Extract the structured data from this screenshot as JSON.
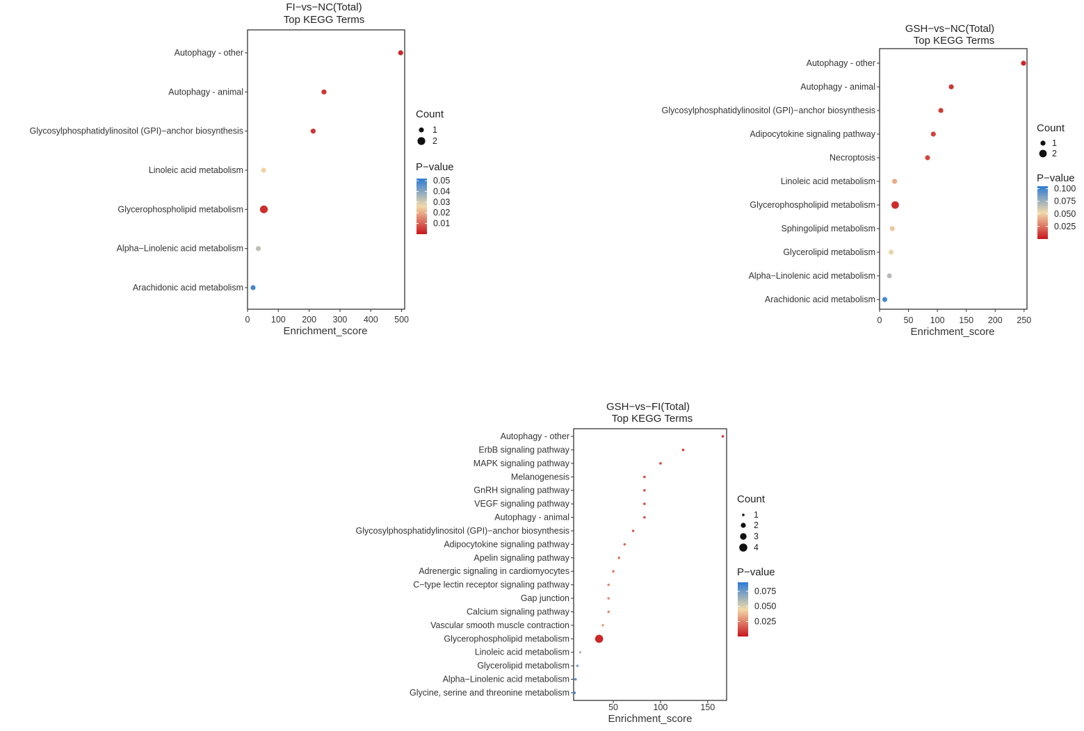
{
  "chart_data": [
    {
      "type": "scatter",
      "title": "FI−vs−NC(Total)",
      "subtitle": "Top KEGG Terms",
      "xlabel": "Enrichment_score",
      "ylabel": "",
      "xlim": [
        0,
        510
      ],
      "xticks": [
        0,
        100,
        200,
        300,
        400,
        500
      ],
      "terms": [
        "Autophagy - other",
        "Autophagy - animal",
        "Glycosylphosphatidylinositol (GPI)−anchor biosynthesis",
        "Linoleic acid metabolism",
        "Glycerophospholipid metabolism",
        "Alpha−Linolenic acid metabolism",
        "Arachidonic acid metabolism"
      ],
      "enrichment_score": [
        497,
        248,
        213,
        52,
        53,
        35,
        18
      ],
      "count": [
        1,
        1,
        1,
        1,
        2,
        1,
        1
      ],
      "pvalue": [
        0.002,
        0.004,
        0.004,
        0.025,
        0.003,
        0.033,
        0.049
      ],
      "legend": {
        "count_title": "Count",
        "count_levels": [
          1,
          2
        ],
        "pvalue_title": "P−value",
        "pvalue_range": [
          0.0,
          0.052
        ],
        "pvalue_ticks": [
          "0.05",
          "0.04",
          "0.03",
          "0.02",
          "0.01"
        ],
        "pvalue_tick_values": [
          0.05,
          0.04,
          0.03,
          0.02,
          0.01
        ]
      }
    },
    {
      "type": "scatter",
      "title": "GSH−vs−NC(Total)",
      "subtitle": "Top KEGG Terms",
      "xlabel": "Enrichment_score",
      "ylabel": "",
      "xlim": [
        0,
        255
      ],
      "xticks": [
        0,
        50,
        100,
        150,
        200,
        250
      ],
      "terms": [
        "Autophagy - other",
        "Autophagy - animal",
        "Glycosylphosphatidylinositol (GPI)−anchor biosynthesis",
        "Adipocytokine signaling pathway",
        "Necroptosis",
        "Linoleic acid metabolism",
        "Glycerophospholipid metabolism",
        "Sphingolipid metabolism",
        "Glycerolipid metabolism",
        "Alpha−Linolenic acid metabolism",
        "Arachidonic acid metabolism"
      ],
      "enrichment_score": [
        249,
        124,
        106,
        93,
        83,
        26,
        27,
        22,
        20,
        17,
        9
      ],
      "count": [
        1,
        1,
        1,
        1,
        1,
        1,
        2,
        1,
        1,
        1,
        1
      ],
      "pvalue": [
        0.004,
        0.008,
        0.01,
        0.012,
        0.013,
        0.04,
        0.006,
        0.048,
        0.055,
        0.068,
        0.098
      ],
      "legend": {
        "count_title": "Count",
        "count_levels": [
          1,
          2
        ],
        "pvalue_title": "P−value",
        "pvalue_range": [
          0.0,
          0.105
        ],
        "pvalue_ticks": [
          "0.100",
          "0.075",
          "0.050",
          "0.025"
        ],
        "pvalue_tick_values": [
          0.1,
          0.075,
          0.05,
          0.025
        ]
      }
    },
    {
      "type": "scatter",
      "title": "GSH−vs−FI(Total)",
      "subtitle": "Top KEGG Terms",
      "xlabel": "Enrichment_score",
      "ylabel": "",
      "xlim": [
        8,
        170
      ],
      "xticks": [
        50,
        100,
        150
      ],
      "terms": [
        "Autophagy - other",
        "ErbB signaling pathway",
        "MAPK signaling pathway",
        "Melanogenesis",
        "GnRH signaling pathway",
        "VEGF signaling pathway",
        "Autophagy - animal",
        "Glycosylphosphatidylinositol (GPI)−anchor biosynthesis",
        "Adipocytokine signaling pathway",
        "Apelin signaling pathway",
        "Adrenergic signaling in cardiomyocytes",
        "C−type lectin receptor signaling pathway",
        "Gap junction",
        "Calcium signaling pathway",
        "Vascular smooth muscle contraction",
        "Glycerophospholipid metabolism",
        "Linoleic acid metabolism",
        "Glycerolipid metabolism",
        "Alpha−Linolenic acid metabolism",
        "Glycine, serine and threonine metabolism"
      ],
      "enrichment_score": [
        166,
        124,
        100,
        83,
        83,
        83,
        83,
        71,
        62,
        56,
        50,
        45,
        45,
        45,
        39,
        35,
        15,
        12,
        10,
        9
      ],
      "count": [
        1,
        1,
        1,
        1,
        1,
        1,
        1,
        1,
        1,
        1,
        1,
        1,
        1,
        1,
        1,
        4,
        1,
        1,
        1,
        1
      ],
      "pvalue": [
        0.006,
        0.009,
        0.011,
        0.013,
        0.013,
        0.013,
        0.013,
        0.016,
        0.019,
        0.021,
        0.024,
        0.027,
        0.027,
        0.027,
        0.031,
        0.004,
        0.058,
        0.071,
        0.078,
        0.085
      ],
      "legend": {
        "count_title": "Count",
        "count_levels": [
          1,
          2,
          3,
          4
        ],
        "pvalue_title": "P−value",
        "pvalue_range": [
          0.0,
          0.09
        ],
        "pvalue_ticks": [
          "0.075",
          "0.050",
          "0.025"
        ],
        "pvalue_tick_values": [
          0.075,
          0.05,
          0.025
        ]
      }
    }
  ],
  "colors": {
    "low_p": "#c8161d",
    "mid_p": "#f1d9a8",
    "high_p": "#2c7bd6",
    "panel_border": "#222222",
    "grid": "#ececec"
  }
}
